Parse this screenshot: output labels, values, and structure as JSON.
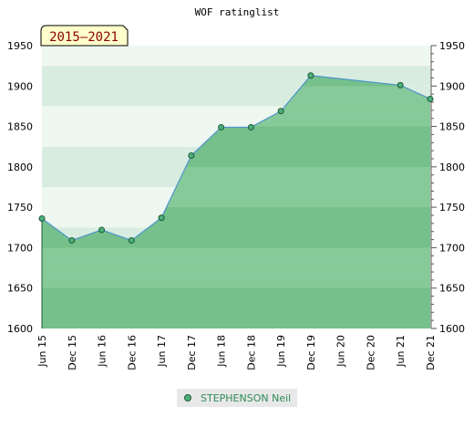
{
  "chart_data": {
    "type": "area",
    "title": "WOF ratinglist",
    "period_label": "2015–2021",
    "xlabel": "",
    "ylabel": "",
    "x_ticks": [
      "Jun 15",
      "Dec 15",
      "Jun 16",
      "Dec 16",
      "Jun 17",
      "Dec 17",
      "Jun 18",
      "Dec 18",
      "Jun 19",
      "Dec 19",
      "Jun 20",
      "Dec 20",
      "Jun 21",
      "Dec 21"
    ],
    "ylim": [
      1600,
      1950
    ],
    "y_ticks": [
      1600,
      1650,
      1700,
      1750,
      1800,
      1850,
      1900,
      1950
    ],
    "grid": true,
    "legend_position": "bottom",
    "series": [
      {
        "name": "STEPHENSON Neil",
        "x": [
          "Jun 15",
          "Dec 15",
          "Jun 16",
          "Dec 16",
          "Jun 17",
          "Dec 17",
          "Jun 18",
          "Dec 18",
          "Jun 19",
          "Dec 19",
          "Jun 21",
          "Dec 21"
        ],
        "values": [
          1736,
          1709,
          1722,
          1709,
          1737,
          1814,
          1849,
          1849,
          1869,
          1913,
          1901,
          1884
        ]
      }
    ],
    "colors": {
      "line": "#4f94cd",
      "fill": "#7cc48f",
      "marker": "#4caf7d",
      "marker_edge": "#1f5a34",
      "legend_text": "#2e8b57",
      "period_text": "#8b0000",
      "period_box": "#ffffcc"
    }
  }
}
